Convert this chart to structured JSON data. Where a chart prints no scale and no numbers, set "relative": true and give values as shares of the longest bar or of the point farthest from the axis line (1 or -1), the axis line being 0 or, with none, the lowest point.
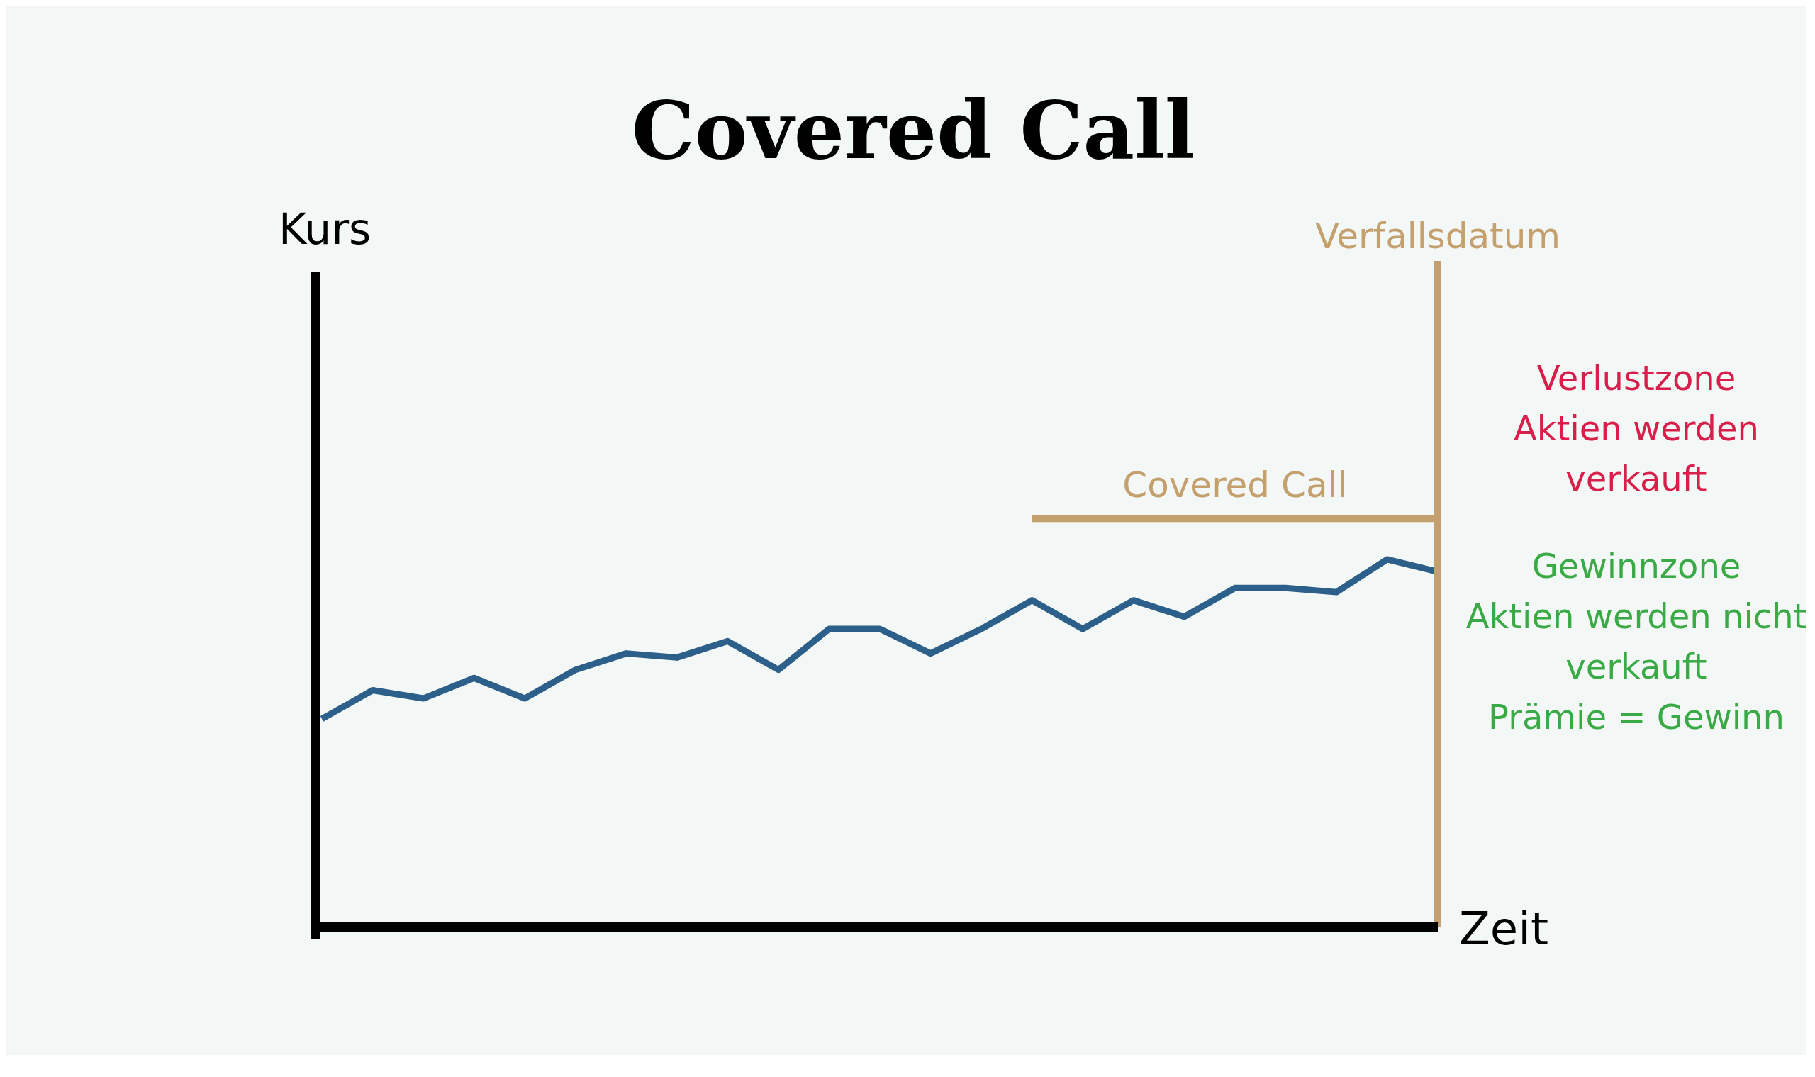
{
  "chart_data": {
    "type": "line",
    "title": "Covered Call",
    "xlabel": "Zeit",
    "relative": true,
    "marker": "none",
    "line_style": "solid",
    "categories": [
      null,
      null,
      null,
      null,
      null,
      null,
      null,
      null,
      null,
      null,
      null,
      null,
      null,
      null,
      null,
      null,
      null,
      null,
      null,
      null,
      null,
      null,
      null
    ],
    "series": [
      {
        "color": "#2c5f8a",
        "values": [
          0.51,
          0.58,
          0.56,
          0.61,
          0.56,
          0.63,
          0.67,
          0.66,
          0.7,
          0.63,
          0.73,
          0.73,
          0.67,
          0.73,
          0.8,
          0.73,
          0.8,
          0.76,
          0.83,
          0.83,
          0.82,
          0.9,
          0.87
        ]
      },
      {
        "name": "Covered Call",
        "color": "#c4a06e",
        "values": [
          null,
          null,
          null,
          null,
          null,
          null,
          null,
          null,
          null,
          null,
          null,
          null,
          null,
          null,
          1,
          1,
          1,
          1,
          1,
          1,
          1,
          1,
          1
        ]
      }
    ],
    "annotations": [
      "Kurs",
      "Verfallsdatum",
      "Verlustzone\nAktien werden\nverkauft",
      "Gewinnzone\nAktien werden nicht\nverkauft\nPrämie = Gewinn"
    ]
  }
}
